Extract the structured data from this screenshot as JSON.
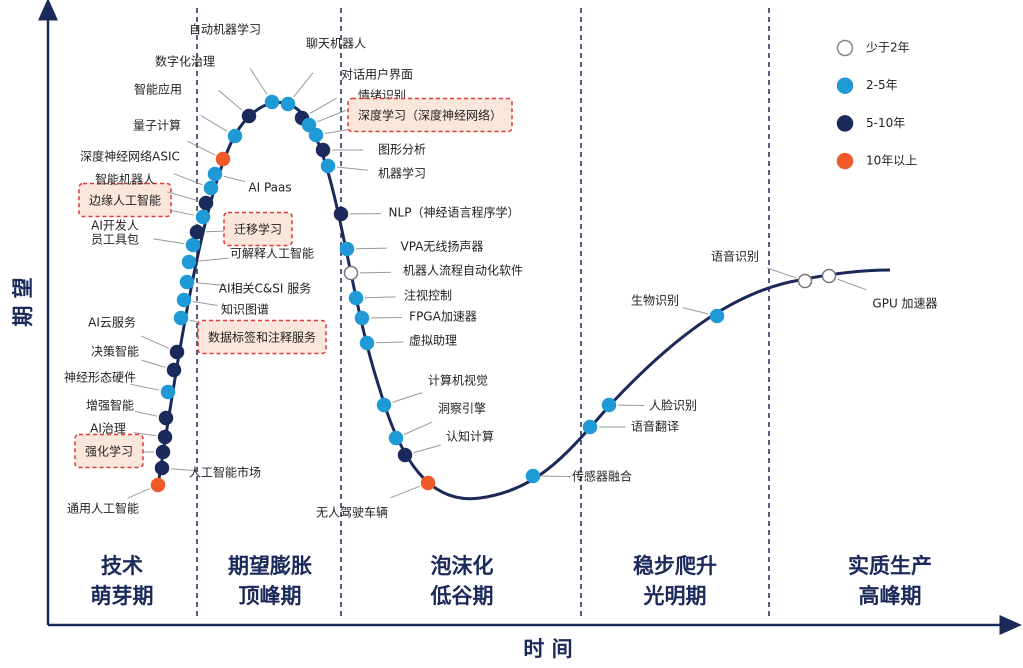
{
  "axes": {
    "y_label": "期 望",
    "x_label": "时 间"
  },
  "phases": [
    {
      "lines": [
        "技术",
        "萌芽期"
      ]
    },
    {
      "lines": [
        "期望膨胀",
        "顶峰期"
      ]
    },
    {
      "lines": [
        "泡沫化",
        "低谷期"
      ]
    },
    {
      "lines": [
        "稳步爬升",
        "光明期"
      ]
    },
    {
      "lines": [
        "实质生产",
        "高峰期"
      ]
    }
  ],
  "legend": [
    {
      "label": "少于2年",
      "color": "#ffffff"
    },
    {
      "label": "2-5年",
      "color": "#1f9ad6"
    },
    {
      "label": "5-10年",
      "color": "#1b2a5a"
    },
    {
      "label": "10年以上",
      "color": "#f05a28"
    }
  ],
  "nodes": [
    {
      "lines": [
        "通用人工智能"
      ],
      "color": "#f05a28"
    },
    {
      "lines": [
        "人工智能市场"
      ],
      "color": "#1b2a5a"
    },
    {
      "lines": [
        "强化学习"
      ],
      "color": "#1b2a5a",
      "highlight": true
    },
    {
      "lines": [
        "AI治理"
      ],
      "color": "#1b2a5a"
    },
    {
      "lines": [
        "增强智能"
      ],
      "color": "#1b2a5a"
    },
    {
      "lines": [
        "神经形态硬件"
      ],
      "color": "#1f9ad6"
    },
    {
      "lines": [
        "决策智能"
      ],
      "color": "#1b2a5a"
    },
    {
      "lines": [
        "AI云服务"
      ],
      "color": "#1b2a5a"
    },
    {
      "lines": [
        "数据标签和注释服务"
      ],
      "color": "#1f9ad6",
      "highlight": true
    },
    {
      "lines": [
        "知识图谱"
      ],
      "color": "#1f9ad6"
    },
    {
      "lines": [
        "AI相关C&SI 服务"
      ],
      "color": "#1f9ad6"
    },
    {
      "lines": [
        "可解释人工智能"
      ],
      "color": "#1f9ad6"
    },
    {
      "lines": [
        "AI开发人",
        "员工具包"
      ],
      "color": "#1f9ad6"
    },
    {
      "lines": [
        "迁移学习"
      ],
      "color": "#1b2a5a",
      "highlight": true
    },
    {
      "lines": [
        "边缘人工智能"
      ],
      "color": "#1f9ad6",
      "highlight": true
    },
    {
      "lines": [
        "智能机器人"
      ],
      "color": "#1b2a5a"
    },
    {
      "lines": [
        "深度神经网络ASIC"
      ],
      "color": "#1f9ad6"
    },
    {
      "lines": [
        "AI Paas"
      ],
      "color": "#1f9ad6"
    },
    {
      "lines": [
        "量子计算"
      ],
      "color": "#f05a28"
    },
    {
      "lines": [
        "智能应用"
      ],
      "color": "#1f9ad6"
    },
    {
      "lines": [
        "数字化治理"
      ],
      "color": "#1b2a5a"
    },
    {
      "lines": [
        "自动机器学习"
      ],
      "color": "#1f9ad6"
    },
    {
      "lines": [
        "聊天机器人"
      ],
      "color": "#1f9ad6"
    },
    {
      "lines": [
        "对话用户界面"
      ],
      "color": "#1b2a5a"
    },
    {
      "lines": [
        "情绪识别"
      ],
      "color": "#1f9ad6"
    },
    {
      "lines": [
        "深度学习（深度神经网络）"
      ],
      "color": "#1f9ad6",
      "highlight": true
    },
    {
      "lines": [
        "图形分析"
      ],
      "color": "#1b2a5a"
    },
    {
      "lines": [
        "机器学习"
      ],
      "color": "#1f9ad6"
    },
    {
      "lines": [
        "NLP（神经语言程序学）"
      ],
      "color": "#1b2a5a"
    },
    {
      "lines": [
        "VPA无线扬声器"
      ],
      "color": "#1f9ad6"
    },
    {
      "lines": [
        "机器人流程自动化软件"
      ],
      "color": "#ffffff"
    },
    {
      "lines": [
        "注视控制"
      ],
      "color": "#1f9ad6"
    },
    {
      "lines": [
        "FPGA加速器"
      ],
      "color": "#1f9ad6"
    },
    {
      "lines": [
        "虚拟助理"
      ],
      "color": "#1f9ad6"
    },
    {
      "lines": [
        "计算机视觉"
      ],
      "color": "#1f9ad6"
    },
    {
      "lines": [
        "洞察引擎"
      ],
      "color": "#1f9ad6"
    },
    {
      "lines": [
        "认知计算"
      ],
      "color": "#1b2a5a"
    },
    {
      "lines": [
        "无人驾驶车辆"
      ],
      "color": "#f05a28"
    },
    {
      "lines": [
        "传感器融合"
      ],
      "color": "#1f9ad6"
    },
    {
      "lines": [
        "语音翻译"
      ],
      "color": "#1f9ad6"
    },
    {
      "lines": [
        "人脸识别"
      ],
      "color": "#1f9ad6"
    },
    {
      "lines": [
        "生物识别"
      ],
      "color": "#1f9ad6"
    },
    {
      "lines": [
        "语音识别"
      ],
      "color": "#ffffff"
    },
    {
      "lines": [
        "GPU 加速器"
      ],
      "color": "#ffffff"
    }
  ]
}
